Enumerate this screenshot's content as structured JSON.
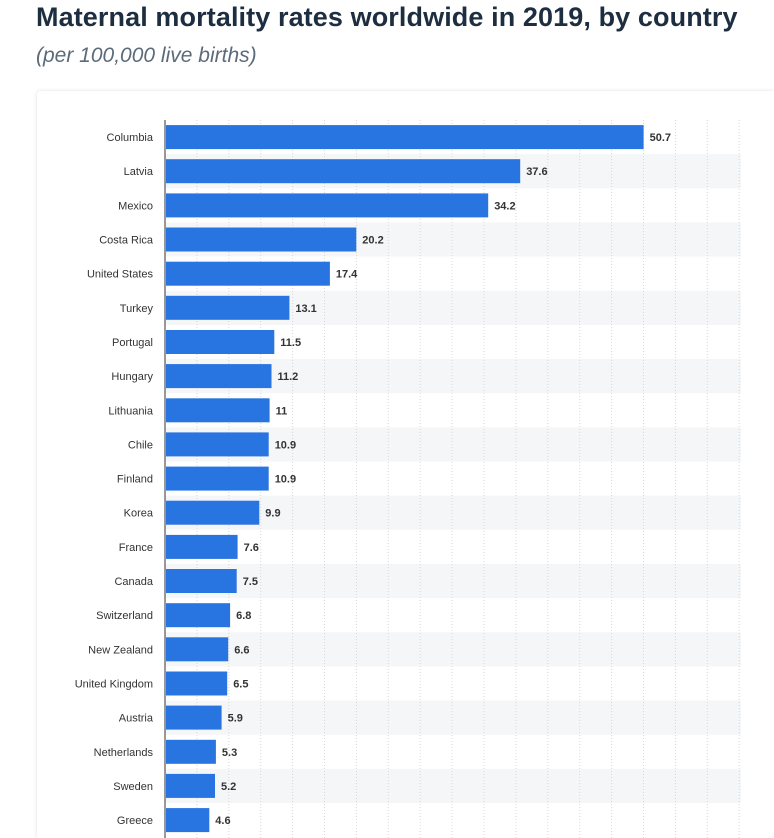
{
  "header": {
    "title": "Maternal mortality rates worldwide in 2019, by country",
    "subtitle": "(per 100,000 live births)"
  },
  "colors": {
    "bar": "#2874e0",
    "title": "#1d2e40",
    "subtitle": "#5c6b7a",
    "band": "#f5f6f8",
    "grid": "#d8d8d8"
  },
  "chart_data": {
    "type": "bar",
    "orientation": "horizontal",
    "title": "Maternal mortality rates worldwide in 2019, by country",
    "subtitle": "(per 100,000 live births)",
    "categories": [
      "Columbia",
      "Latvia",
      "Mexico",
      "Costa Rica",
      "United States",
      "Turkey",
      "Portugal",
      "Hungary",
      "Lithuania",
      "Chile",
      "Finland",
      "Korea",
      "France",
      "Canada",
      "Switzerland",
      "New Zealand",
      "United Kingdom",
      "Austria",
      "Netherlands",
      "Sweden",
      "Greece"
    ],
    "values": [
      50.7,
      37.6,
      34.2,
      20.2,
      17.4,
      13.1,
      11.5,
      11.2,
      11,
      10.9,
      10.9,
      9.9,
      7.6,
      7.5,
      6.8,
      6.6,
      6.5,
      5.9,
      5.3,
      5.2,
      4.6
    ],
    "value_labels": [
      "50.7",
      "37.6",
      "34.2",
      "20.2",
      "17.4",
      "13.1",
      "11.5",
      "11.2",
      "11",
      "10.9",
      "10.9",
      "9.9",
      "7.6",
      "7.5",
      "6.8",
      "6.6",
      "6.5",
      "5.9",
      "5.3",
      "5.2",
      "4.6"
    ],
    "xlim": [
      0,
      60
    ],
    "grid": true,
    "legend": "none"
  }
}
